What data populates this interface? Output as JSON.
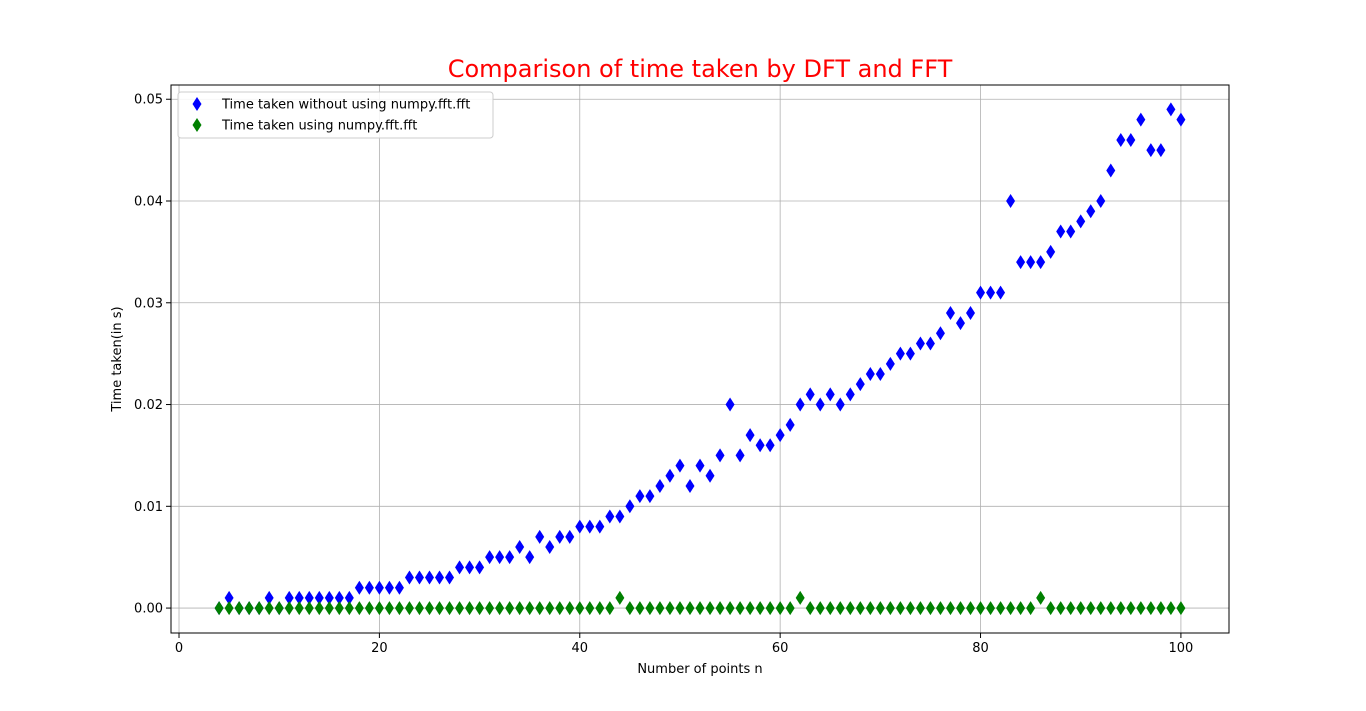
{
  "chart_data": {
    "type": "scatter",
    "title": "Comparison of time taken by DFT and FFT",
    "xlabel": "Number of points n",
    "ylabel": "Time taken(in s)",
    "xlim": [
      -0.8,
      104.8
    ],
    "ylim": [
      -0.00245,
      0.0514
    ],
    "xticks": [
      0,
      20,
      40,
      60,
      80,
      100
    ],
    "xtick_labels": [
      "0",
      "20",
      "40",
      "60",
      "80",
      "100"
    ],
    "yticks": [
      0.0,
      0.01,
      0.02,
      0.03,
      0.04,
      0.05
    ],
    "ytick_labels": [
      "0.00",
      "0.01",
      "0.02",
      "0.03",
      "0.04",
      "0.05"
    ],
    "grid": true,
    "legend_position": "top-left",
    "title_color": "#ff0000",
    "series": [
      {
        "name": "Time taken without using numpy.fft.fft",
        "color": "#0000ff",
        "marker": "diamond",
        "x": [
          4,
          5,
          6,
          7,
          8,
          9,
          10,
          11,
          12,
          13,
          14,
          15,
          16,
          17,
          18,
          19,
          20,
          21,
          22,
          23,
          24,
          25,
          26,
          27,
          28,
          29,
          30,
          31,
          32,
          33,
          34,
          35,
          36,
          37,
          38,
          39,
          40,
          41,
          42,
          43,
          44,
          45,
          46,
          47,
          48,
          49,
          50,
          51,
          52,
          53,
          54,
          55,
          56,
          57,
          58,
          59,
          60,
          61,
          62,
          63,
          64,
          65,
          66,
          67,
          68,
          69,
          70,
          71,
          72,
          73,
          74,
          75,
          76,
          77,
          78,
          79,
          80,
          81,
          82,
          83,
          84,
          85,
          86,
          87,
          88,
          89,
          90,
          91,
          92,
          93,
          94,
          95,
          96,
          97,
          98,
          99,
          100
        ],
        "y": [
          0,
          0.001,
          0,
          0,
          0,
          0.001,
          0,
          0.001,
          0.001,
          0.001,
          0.001,
          0.001,
          0.001,
          0.001,
          0.002,
          0.002,
          0.002,
          0.002,
          0.002,
          0.003,
          0.003,
          0.003,
          0.003,
          0.003,
          0.004,
          0.004,
          0.004,
          0.005,
          0.005,
          0.005,
          0.006,
          0.005,
          0.007,
          0.006,
          0.007,
          0.007,
          0.008,
          0.008,
          0.008,
          0.009,
          0.009,
          0.01,
          0.011,
          0.011,
          0.012,
          0.013,
          0.014,
          0.012,
          0.014,
          0.013,
          0.015,
          0.02,
          0.015,
          0.017,
          0.016,
          0.016,
          0.017,
          0.018,
          0.02,
          0.021,
          0.02,
          0.021,
          0.02,
          0.021,
          0.022,
          0.023,
          0.023,
          0.024,
          0.025,
          0.025,
          0.026,
          0.026,
          0.027,
          0.029,
          0.028,
          0.029,
          0.031,
          0.031,
          0.031,
          0.04,
          0.034,
          0.034,
          0.034,
          0.035,
          0.037,
          0.037,
          0.038,
          0.039,
          0.04,
          0.043,
          0.046,
          0.046,
          0.048,
          0.045,
          0.045,
          0.049,
          0.048
        ]
      },
      {
        "name": "Time taken using numpy.fft.fft",
        "color": "#008000",
        "marker": "diamond",
        "x": [
          4,
          5,
          6,
          7,
          8,
          9,
          10,
          11,
          12,
          13,
          14,
          15,
          16,
          17,
          18,
          19,
          20,
          21,
          22,
          23,
          24,
          25,
          26,
          27,
          28,
          29,
          30,
          31,
          32,
          33,
          34,
          35,
          36,
          37,
          38,
          39,
          40,
          41,
          42,
          43,
          44,
          45,
          46,
          47,
          48,
          49,
          50,
          51,
          52,
          53,
          54,
          55,
          56,
          57,
          58,
          59,
          60,
          61,
          62,
          63,
          64,
          65,
          66,
          67,
          68,
          69,
          70,
          71,
          72,
          73,
          74,
          75,
          76,
          77,
          78,
          79,
          80,
          81,
          82,
          83,
          84,
          85,
          86,
          87,
          88,
          89,
          90,
          91,
          92,
          93,
          94,
          95,
          96,
          97,
          98,
          99,
          100
        ],
        "y": [
          0,
          0,
          0,
          0,
          0,
          0,
          0,
          0,
          0,
          0,
          0,
          0,
          0,
          0,
          0,
          0,
          0,
          0,
          0,
          0,
          0,
          0,
          0,
          0,
          0,
          0,
          0,
          0,
          0,
          0,
          0,
          0,
          0,
          0,
          0,
          0,
          0,
          0,
          0,
          0,
          0.001,
          0,
          0,
          0,
          0,
          0,
          0,
          0,
          0,
          0,
          0,
          0,
          0,
          0,
          0,
          0,
          0,
          0,
          0.001,
          0,
          0,
          0,
          0,
          0,
          0,
          0,
          0,
          0,
          0,
          0,
          0,
          0,
          0,
          0,
          0,
          0,
          0,
          0,
          0,
          0,
          0,
          0,
          0.001,
          0,
          0,
          0,
          0,
          0,
          0,
          0,
          0,
          0,
          0,
          0,
          0,
          0,
          0
        ]
      }
    ]
  }
}
